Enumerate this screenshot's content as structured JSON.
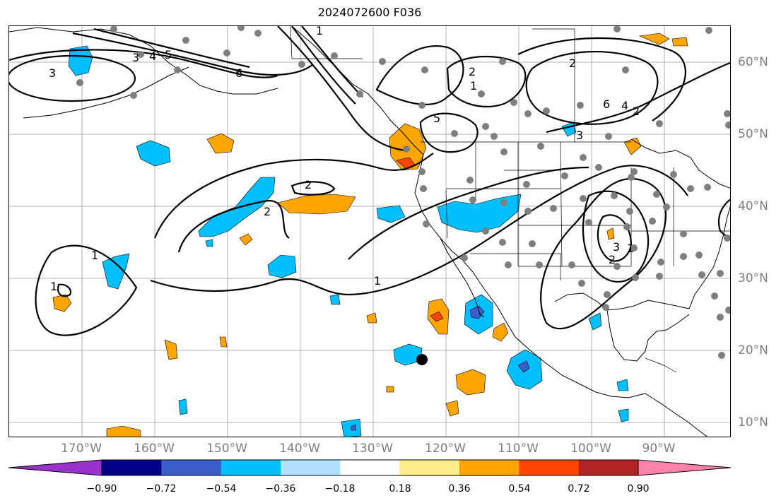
{
  "title": "2024072600 F036",
  "map": {
    "lon_labels": [
      "170°W",
      "160°W",
      "150°W",
      "140°W",
      "130°W",
      "120°W",
      "110°W",
      "100°W",
      "90°W"
    ],
    "lat_labels": [
      "60°N",
      "50°N",
      "40°N",
      "30°N",
      "20°N",
      "10°N"
    ],
    "contour_labels": [
      "3",
      "3",
      "4",
      "5",
      "6",
      "1",
      "2",
      "1",
      "2",
      "5",
      "6",
      "4",
      "3",
      "2",
      "2",
      "1",
      "1",
      "1",
      "2",
      "3",
      "2",
      "1"
    ]
  },
  "colorbar": {
    "tick_labels": [
      "−0.90",
      "−0.72",
      "−0.54",
      "−0.36",
      "−0.18",
      "0.18",
      "0.36",
      "0.54",
      "0.72",
      "0.90"
    ],
    "colors": [
      "#9932cc",
      "#00008b",
      "#3a5fcd",
      "#00bfff",
      "#b0e2ff",
      "#ffffff",
      "#ffec8b",
      "#ffa500",
      "#ff4500",
      "#b22222",
      "#ff82ab"
    ]
  }
}
